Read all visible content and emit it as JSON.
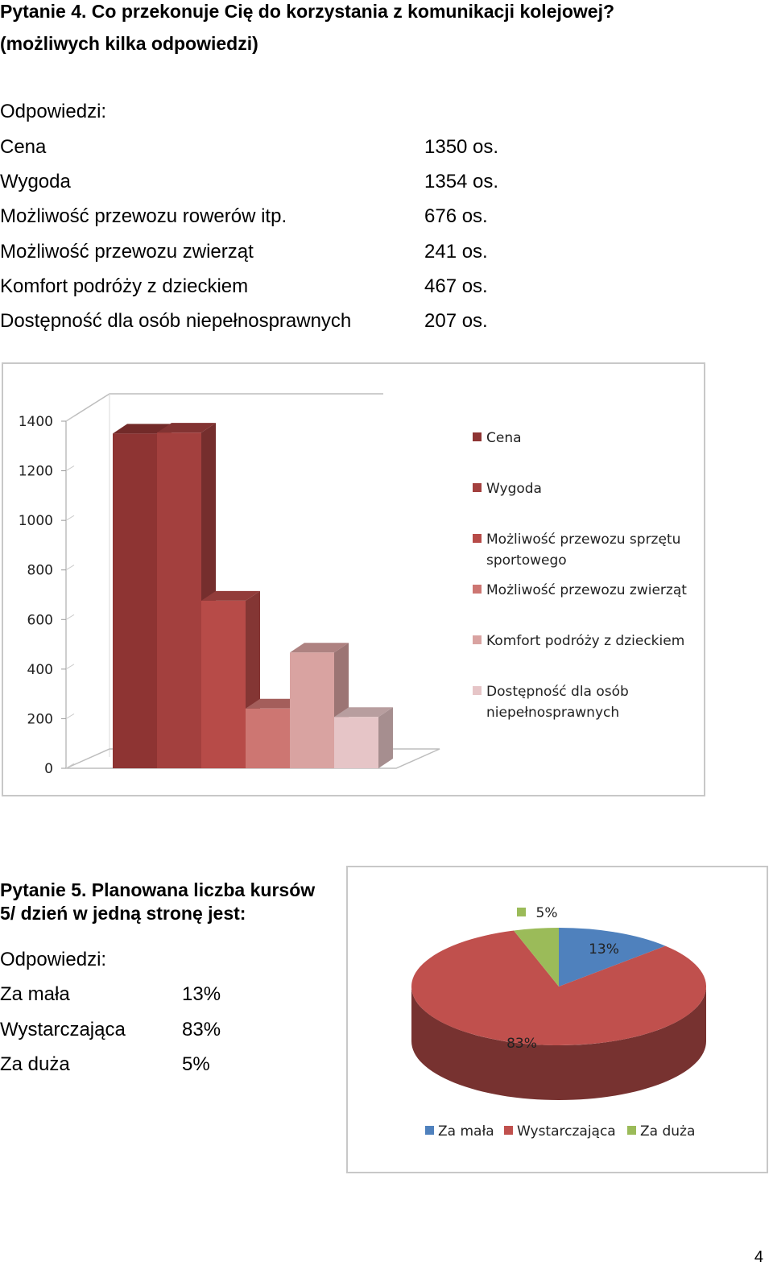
{
  "q4": {
    "title_line1": "Pytanie 4. Co przekonuje Cię do korzystania z komunikacji kolejowej?",
    "title_line2": "(możliwych kilka odpowiedzi)",
    "answers_heading": "Odpowiedzi:",
    "answers": [
      {
        "label": "Cena",
        "value": "1350 os."
      },
      {
        "label": "Wygoda",
        "value": "1354 os."
      },
      {
        "label": "Możliwość przewozu rowerów itp.",
        "value": "676 os."
      },
      {
        "label": "Możliwość przewozu zwierząt",
        "value": "241 os."
      },
      {
        "label": "Komfort podróży z dzieckiem",
        "value": "467 os."
      },
      {
        "label": "Dostępność dla osób niepełnosprawnych",
        "value": "207 os."
      }
    ]
  },
  "q5": {
    "title_line1": "Pytanie 5. Planowana liczba kursów",
    "title_line2": "5/ dzień w jedną stronę jest:",
    "answers_heading": "Odpowiedzi:",
    "answers": [
      {
        "label": "Za mała",
        "value": "13%"
      },
      {
        "label": "Wystarczająca",
        "value": "83%"
      },
      {
        "label": "Za duża",
        "value": "5%"
      }
    ]
  },
  "page_number": "4",
  "chart_data": [
    {
      "type": "bar",
      "style": "3d-column",
      "categories": [
        "Cena",
        "Wygoda",
        "Możliwość przewozu sprzętu sportowego",
        "Możliwość przewozu zwierząt",
        "Komfort podróży z dzieckiem",
        "Dostępność dla osób niepełnosprawnych"
      ],
      "values": [
        1350,
        1354,
        676,
        241,
        467,
        207
      ],
      "colors": [
        "#8e3433",
        "#a3403e",
        "#b74b48",
        "#cd7672",
        "#d9a3a1",
        "#e6c5c7"
      ],
      "yticks": [
        "0",
        "200",
        "400",
        "600",
        "800",
        "1000",
        "1200",
        "1400"
      ],
      "ylim": [
        0,
        1400
      ],
      "legend_position": "right",
      "grid": false
    },
    {
      "type": "pie",
      "style": "3d-pie",
      "labels": [
        "Za mała",
        "Wystarczająca",
        "Za duża"
      ],
      "values": [
        13,
        83,
        5
      ],
      "data_labels": [
        "13%",
        "83%",
        "5%"
      ],
      "colors": [
        "#4f81bd",
        "#c0504d",
        "#9bbb59"
      ],
      "legend_position": "bottom"
    }
  ]
}
